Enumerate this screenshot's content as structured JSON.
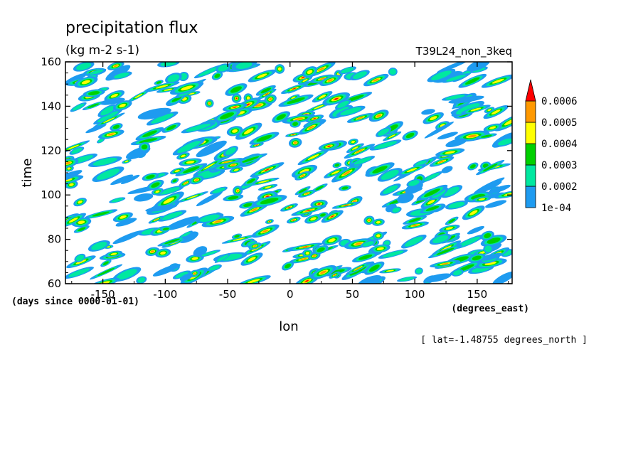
{
  "chart_data": {
    "type": "heatmap",
    "title": "precipitation flux",
    "units": "(kg m-2 s-1)",
    "run_label": "T39L24_non_3keq",
    "xlabel": "lon",
    "x_units": "(degrees_east)",
    "ylabel": "time",
    "y_units": "(days since 0000-01-01)",
    "annotation": "[ lat=-1.48755 degrees_north ]",
    "xlim": [
      -180,
      178
    ],
    "ylim": [
      60,
      160
    ],
    "x_ticks": [
      -150,
      -100,
      -50,
      0,
      50,
      100,
      150
    ],
    "y_ticks": [
      60,
      80,
      100,
      120,
      140,
      160
    ],
    "color_scale": {
      "levels": [
        0.0001,
        0.0002,
        0.0003,
        0.0004,
        0.0005,
        0.0006
      ],
      "labels": [
        "1e-04",
        "0.0002",
        "0.0003",
        "0.0004",
        "0.0005",
        "0.0006"
      ],
      "colors": [
        "#1e9bf0",
        "#00e8a0",
        "#00d000",
        "#ffff00",
        "#ff9900",
        "#ff0000"
      ],
      "extend": "max"
    },
    "grid": false
  }
}
